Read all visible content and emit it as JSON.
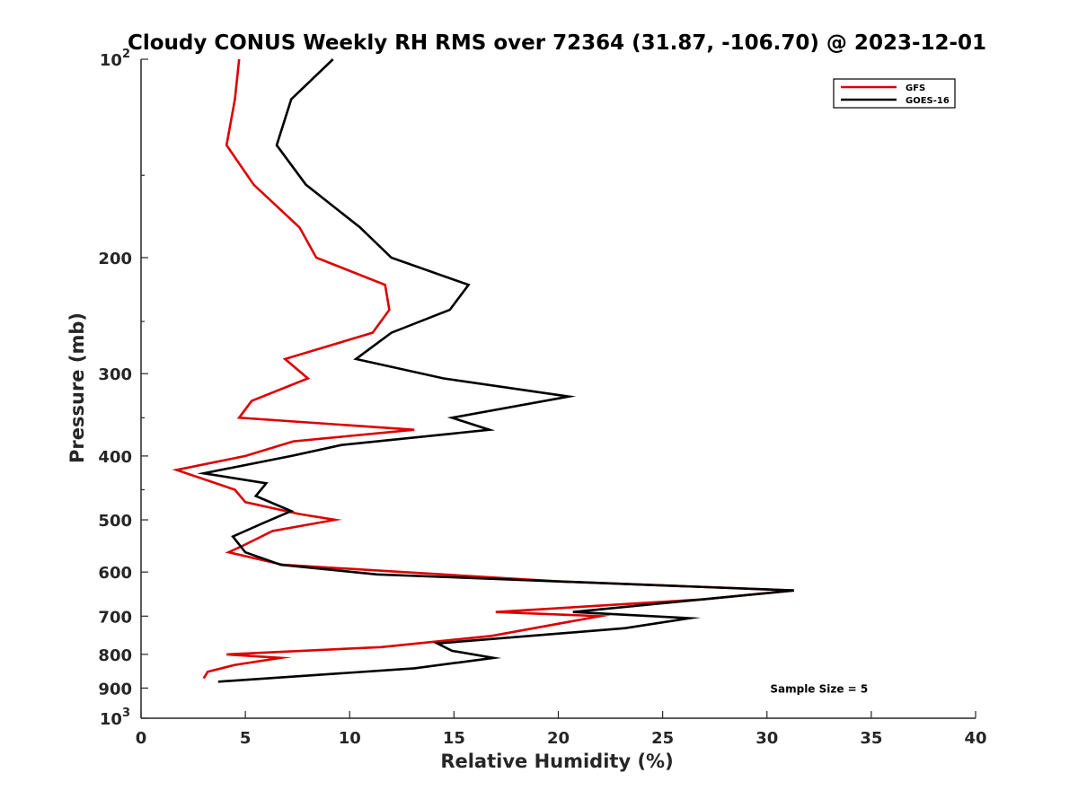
{
  "chart_data": {
    "type": "line",
    "title": "Cloudy CONUS Weekly RH RMS over 72364 (31.87, -106.70) @ 2023-12-01",
    "xlabel": "Relative Humidity (%)",
    "ylabel": "Pressure (mb)",
    "xlim": [
      0,
      40
    ],
    "ylim": [
      1000,
      100
    ],
    "yscale": "log",
    "y_reversed": true,
    "grid": false,
    "legend_position": "top-right",
    "x_ticks": [
      {
        "value": 0,
        "label": "0"
      },
      {
        "value": 5,
        "label": "5"
      },
      {
        "value": 10,
        "label": "10"
      },
      {
        "value": 15,
        "label": "15"
      },
      {
        "value": 20,
        "label": "20"
      },
      {
        "value": 25,
        "label": "25"
      },
      {
        "value": 30,
        "label": "30"
      },
      {
        "value": 35,
        "label": "35"
      },
      {
        "value": 40,
        "label": "40"
      }
    ],
    "y_ticks": [
      {
        "value": 100,
        "label": "10",
        "sup": "2"
      },
      {
        "value": 200,
        "label": "200"
      },
      {
        "value": 300,
        "label": "300"
      },
      {
        "value": 400,
        "label": "400"
      },
      {
        "value": 500,
        "label": "500"
      },
      {
        "value": 600,
        "label": "600"
      },
      {
        "value": 700,
        "label": "700"
      },
      {
        "value": 800,
        "label": "800"
      },
      {
        "value": 900,
        "label": "900"
      },
      {
        "value": 1000,
        "label": "10",
        "sup": "3"
      }
    ],
    "series": [
      {
        "name": "GFS",
        "color": "#dd0000",
        "points": [
          [
            4.7,
            100
          ],
          [
            4.5,
            115
          ],
          [
            4.1,
            135
          ],
          [
            5.4,
            155
          ],
          [
            7.6,
            180
          ],
          [
            8.4,
            200
          ],
          [
            11.7,
            220
          ],
          [
            11.9,
            240
          ],
          [
            11.1,
            260
          ],
          [
            6.9,
            285
          ],
          [
            8.0,
            305
          ],
          [
            5.3,
            330
          ],
          [
            4.7,
            350
          ],
          [
            13.1,
            365
          ],
          [
            7.3,
            380
          ],
          [
            5.0,
            400
          ],
          [
            1.7,
            420
          ],
          [
            4.5,
            450
          ],
          [
            5.0,
            470
          ],
          [
            7.6,
            490
          ],
          [
            9.3,
            500
          ],
          [
            6.3,
            520
          ],
          [
            5.0,
            545
          ],
          [
            4.2,
            560
          ],
          [
            6.8,
            585
          ],
          [
            20.0,
            620
          ],
          [
            31.3,
            640
          ],
          [
            27.0,
            660
          ],
          [
            17.0,
            690
          ],
          [
            22.0,
            700
          ],
          [
            16.8,
            750
          ],
          [
            11.5,
            780
          ],
          [
            4.1,
            800
          ],
          [
            6.7,
            810
          ],
          [
            4.5,
            830
          ],
          [
            3.2,
            850
          ],
          [
            3.0,
            870
          ]
        ]
      },
      {
        "name": "GOES-16",
        "color": "#000000",
        "points": [
          [
            9.2,
            100
          ],
          [
            7.2,
            115
          ],
          [
            6.5,
            135
          ],
          [
            7.9,
            155
          ],
          [
            10.5,
            180
          ],
          [
            12.0,
            200
          ],
          [
            15.7,
            220
          ],
          [
            14.8,
            240
          ],
          [
            12.0,
            260
          ],
          [
            10.3,
            285
          ],
          [
            14.5,
            305
          ],
          [
            20.5,
            325
          ],
          [
            14.9,
            350
          ],
          [
            16.7,
            365
          ],
          [
            9.6,
            385
          ],
          [
            7.2,
            400
          ],
          [
            3.0,
            425
          ],
          [
            6.0,
            440
          ],
          [
            5.5,
            460
          ],
          [
            7.2,
            485
          ],
          [
            5.9,
            505
          ],
          [
            4.4,
            530
          ],
          [
            5.0,
            560
          ],
          [
            6.7,
            585
          ],
          [
            11.3,
            605
          ],
          [
            31.3,
            640
          ],
          [
            20.7,
            690
          ],
          [
            26.3,
            705
          ],
          [
            23.2,
            730
          ],
          [
            14.2,
            770
          ],
          [
            14.9,
            790
          ],
          [
            16.9,
            810
          ],
          [
            13.1,
            840
          ],
          [
            3.7,
            880
          ]
        ]
      }
    ],
    "annotations": [
      {
        "text": "Sample Size = 5",
        "x": 32.5,
        "y": 900
      }
    ]
  }
}
